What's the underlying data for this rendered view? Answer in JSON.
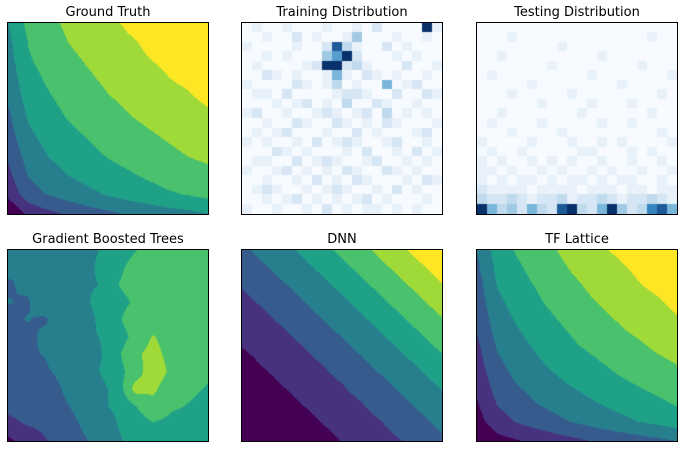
{
  "figure": {
    "background": "#ffffff",
    "rows": 2,
    "cols": 3
  },
  "colors": {
    "viridis_bands": [
      "#440154",
      "#46327e",
      "#365c8d",
      "#277f8e",
      "#1fa187",
      "#4ac16d",
      "#a0da39",
      "#fde725"
    ],
    "blues_stops": [
      {
        "v": 0.0,
        "c": "#f7fbff"
      },
      {
        "v": 0.2,
        "c": "#dce9f6"
      },
      {
        "v": 0.4,
        "c": "#b0d2e8"
      },
      {
        "v": 0.6,
        "c": "#6aaed6"
      },
      {
        "v": 0.8,
        "c": "#2e7ebc"
      },
      {
        "v": 1.0,
        "c": "#08306b"
      }
    ]
  },
  "chart_data": [
    {
      "id": "ground-truth",
      "title": "Ground Truth",
      "type": "heatmap",
      "render": "contour",
      "colormap": "viridis",
      "levels": 8,
      "value_range": [
        0,
        1
      ],
      "note": "smooth surface, low at bottom-left, high at top-right, L-shaped contour bands",
      "grid": [
        [
          0.5,
          0.66,
          0.72,
          0.77,
          0.82,
          0.85,
          0.89,
          0.92,
          0.95,
          0.97,
          1.0
        ],
        [
          0.47,
          0.63,
          0.7,
          0.75,
          0.79,
          0.83,
          0.86,
          0.89,
          0.92,
          0.95,
          0.97
        ],
        [
          0.45,
          0.61,
          0.67,
          0.72,
          0.76,
          0.8,
          0.84,
          0.87,
          0.89,
          0.92,
          0.95
        ],
        [
          0.42,
          0.58,
          0.64,
          0.69,
          0.73,
          0.77,
          0.81,
          0.84,
          0.87,
          0.89,
          0.92
        ],
        [
          0.39,
          0.55,
          0.61,
          0.66,
          0.7,
          0.74,
          0.77,
          0.81,
          0.84,
          0.86,
          0.89
        ],
        [
          0.35,
          0.51,
          0.58,
          0.63,
          0.67,
          0.71,
          0.74,
          0.77,
          0.8,
          0.83,
          0.85
        ],
        [
          0.32,
          0.47,
          0.54,
          0.59,
          0.63,
          0.67,
          0.7,
          0.73,
          0.76,
          0.79,
          0.82
        ],
        [
          0.27,
          0.43,
          0.5,
          0.55,
          0.59,
          0.63,
          0.66,
          0.69,
          0.72,
          0.75,
          0.77
        ],
        [
          0.22,
          0.38,
          0.45,
          0.5,
          0.54,
          0.58,
          0.61,
          0.64,
          0.67,
          0.7,
          0.72
        ],
        [
          0.16,
          0.32,
          0.38,
          0.43,
          0.47,
          0.51,
          0.55,
          0.58,
          0.61,
          0.63,
          0.66
        ],
        [
          0.0,
          0.16,
          0.22,
          0.27,
          0.32,
          0.35,
          0.39,
          0.42,
          0.45,
          0.47,
          0.5
        ]
      ]
    },
    {
      "id": "training-distribution",
      "title": "Training Distribution",
      "type": "heatmap",
      "render": "cells",
      "colormap": "blues",
      "cell_value_scale": 9,
      "note": "sparse scattered samples, dense dark cluster near upper middle, single dark cell top-right",
      "rows": [
        "01001000100102000091",
        "00100201001400010010",
        "10000100283100201000",
        "00101000469200010100",
        "01000012992310002001",
        "00210100151021010010",
        "10000210130100501200",
        "01102000012210020021",
        "00010120103002100100",
        "12001001210120301010",
        "00100210021010210001",
        "01012000100201000120",
        "10100102012100120010",
        "00021010001020010201",
        "01100201210012001010",
        "10012010102100210100",
        "00100102010210001021",
        "01210010121001020100",
        "00101201010120100010",
        "10010010201011010100"
      ]
    },
    {
      "id": "testing-distribution",
      "title": "Testing Distribution",
      "type": "heatmap",
      "render": "cells",
      "colormap": "blues",
      "cell_value_scale": 9,
      "note": "nearly empty above, samples concentrated along bottom two rows with very dark cells",
      "rows": [
        "00000000000000000000",
        "00010000000000000100",
        "00000000100000000000",
        "00100000000010000000",
        "00000001000000001000",
        "01000000000100000001",
        "00000100000000100000",
        "00010000010000000010",
        "00000010000100010000",
        "00100000001000000100",
        "01000010000010010000",
        "00010000100000000010",
        "10000100010010100001",
        "01001000001100010100",
        "10100101010010010010",
        "11010010100101001001",
        "10101101011010110010",
        "21111011110111011011",
        "32232122312232122321",
        "95342532893259423785"
      ]
    },
    {
      "id": "gradient-boosted-trees",
      "title": "Gradient Boosted Trees",
      "type": "heatmap",
      "render": "contour",
      "colormap": "viridis",
      "levels": 8,
      "value_range": [
        0,
        1
      ],
      "note": "blocky axis-aligned piecewise-constant prediction, dark at left/bottom-left, bright green streak right of center",
      "grid": [
        [
          0.42,
          0.4,
          0.44,
          0.4,
          0.46,
          0.5,
          0.58,
          0.62,
          0.66,
          0.68,
          0.7,
          0.72
        ],
        [
          0.4,
          0.38,
          0.42,
          0.44,
          0.44,
          0.52,
          0.6,
          0.66,
          0.7,
          0.66,
          0.68,
          0.7
        ],
        [
          0.36,
          0.4,
          0.38,
          0.42,
          0.48,
          0.5,
          0.62,
          0.68,
          0.64,
          0.7,
          0.66,
          0.68
        ],
        [
          0.38,
          0.36,
          0.44,
          0.4,
          0.46,
          0.54,
          0.58,
          0.64,
          0.72,
          0.68,
          0.7,
          0.66
        ],
        [
          0.34,
          0.38,
          0.36,
          0.44,
          0.42,
          0.52,
          0.6,
          0.7,
          0.66,
          0.72,
          0.68,
          0.7
        ],
        [
          0.36,
          0.34,
          0.4,
          0.38,
          0.48,
          0.5,
          0.56,
          0.66,
          0.76,
          0.68,
          0.66,
          0.68
        ],
        [
          0.32,
          0.36,
          0.38,
          0.42,
          0.44,
          0.48,
          0.6,
          0.72,
          0.8,
          0.7,
          0.68,
          0.66
        ],
        [
          0.34,
          0.32,
          0.36,
          0.4,
          0.42,
          0.5,
          0.58,
          0.68,
          0.84,
          0.72,
          0.66,
          0.64
        ],
        [
          0.3,
          0.34,
          0.32,
          0.38,
          0.44,
          0.46,
          0.54,
          0.8,
          0.78,
          0.66,
          0.64,
          0.62
        ],
        [
          0.28,
          0.3,
          0.34,
          0.36,
          0.4,
          0.48,
          0.52,
          0.62,
          0.7,
          0.64,
          0.62,
          0.6
        ],
        [
          0.22,
          0.26,
          0.28,
          0.34,
          0.38,
          0.42,
          0.5,
          0.58,
          0.62,
          0.6,
          0.58,
          0.6
        ],
        [
          0.1,
          0.18,
          0.24,
          0.3,
          0.36,
          0.4,
          0.48,
          0.54,
          0.58,
          0.56,
          0.58,
          0.56
        ]
      ]
    },
    {
      "id": "dnn",
      "title": "DNN",
      "type": "heatmap",
      "render": "contour",
      "colormap": "viridis",
      "levels": 8,
      "value_range": [
        0,
        1
      ],
      "note": "straight diagonal contour bands, dark wedge bottom-left, small yellow corner top-right",
      "grid": [
        [
          0.35,
          0.41,
          0.46,
          0.52,
          0.59,
          0.65,
          0.72,
          0.78,
          0.85,
          0.93,
          1.0
        ],
        [
          0.3,
          0.35,
          0.41,
          0.46,
          0.52,
          0.59,
          0.65,
          0.72,
          0.78,
          0.85,
          0.93
        ],
        [
          0.25,
          0.3,
          0.35,
          0.41,
          0.46,
          0.52,
          0.59,
          0.65,
          0.72,
          0.78,
          0.85
        ],
        [
          0.21,
          0.25,
          0.3,
          0.35,
          0.41,
          0.46,
          0.52,
          0.59,
          0.65,
          0.72,
          0.78
        ],
        [
          0.16,
          0.21,
          0.25,
          0.3,
          0.35,
          0.41,
          0.46,
          0.52,
          0.59,
          0.65,
          0.72
        ],
        [
          0.13,
          0.16,
          0.21,
          0.25,
          0.3,
          0.35,
          0.41,
          0.46,
          0.52,
          0.59,
          0.65
        ],
        [
          0.09,
          0.13,
          0.16,
          0.21,
          0.25,
          0.3,
          0.35,
          0.41,
          0.46,
          0.52,
          0.59
        ],
        [
          0.06,
          0.09,
          0.13,
          0.16,
          0.21,
          0.25,
          0.3,
          0.35,
          0.41,
          0.46,
          0.52
        ],
        [
          0.03,
          0.06,
          0.09,
          0.13,
          0.16,
          0.21,
          0.25,
          0.3,
          0.35,
          0.41,
          0.46
        ],
        [
          0.01,
          0.03,
          0.06,
          0.09,
          0.13,
          0.16,
          0.21,
          0.25,
          0.3,
          0.35,
          0.41
        ],
        [
          0.0,
          0.01,
          0.03,
          0.06,
          0.09,
          0.13,
          0.16,
          0.21,
          0.25,
          0.3,
          0.35
        ]
      ]
    },
    {
      "id": "tf-lattice",
      "title": "TF Lattice",
      "type": "heatmap",
      "render": "contour",
      "colormap": "viridis",
      "levels": 8,
      "value_range": [
        0,
        1
      ],
      "note": "smooth monotone lattice fit, curved bands, small yellow patch at top-right corner",
      "grid": [
        [
          0.38,
          0.56,
          0.64,
          0.7,
          0.75,
          0.8,
          0.85,
          0.89,
          0.93,
          0.96,
          1.0
        ],
        [
          0.35,
          0.53,
          0.6,
          0.67,
          0.72,
          0.77,
          0.81,
          0.85,
          0.89,
          0.93,
          0.96
        ],
        [
          0.32,
          0.5,
          0.57,
          0.63,
          0.69,
          0.73,
          0.78,
          0.82,
          0.86,
          0.89,
          0.93
        ],
        [
          0.3,
          0.46,
          0.54,
          0.6,
          0.65,
          0.7,
          0.74,
          0.78,
          0.82,
          0.85,
          0.89
        ],
        [
          0.27,
          0.43,
          0.5,
          0.56,
          0.61,
          0.66,
          0.7,
          0.74,
          0.78,
          0.81,
          0.85
        ],
        [
          0.23,
          0.39,
          0.46,
          0.52,
          0.57,
          0.62,
          0.66,
          0.7,
          0.73,
          0.77,
          0.8
        ],
        [
          0.2,
          0.35,
          0.42,
          0.48,
          0.53,
          0.57,
          0.61,
          0.65,
          0.69,
          0.72,
          0.75
        ],
        [
          0.16,
          0.31,
          0.38,
          0.43,
          0.48,
          0.52,
          0.56,
          0.6,
          0.63,
          0.67,
          0.7
        ],
        [
          0.12,
          0.26,
          0.32,
          0.38,
          0.42,
          0.46,
          0.5,
          0.54,
          0.57,
          0.6,
          0.64
        ],
        [
          0.08,
          0.2,
          0.26,
          0.31,
          0.35,
          0.39,
          0.43,
          0.46,
          0.5,
          0.53,
          0.56
        ],
        [
          0.0,
          0.08,
          0.12,
          0.16,
          0.2,
          0.23,
          0.27,
          0.3,
          0.32,
          0.35,
          0.38
        ]
      ]
    }
  ]
}
